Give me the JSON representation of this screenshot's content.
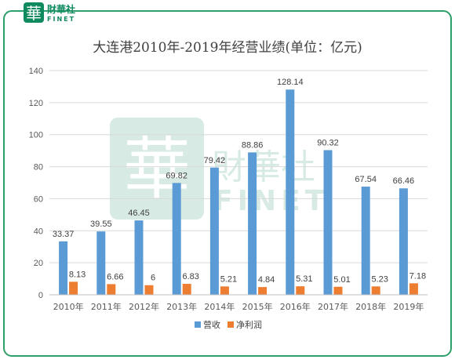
{
  "logo": {
    "mark": "華",
    "brand": "財華社",
    "brand_latin": "FINET"
  },
  "watermark": {
    "mark": "華",
    "brand": "財華社",
    "brand_latin": "FINET"
  },
  "colors": {
    "revenue": "#5b9bd5",
    "profit": "#ed7d31",
    "frame": "#2e9e6a",
    "logo": "#0f8a5f"
  },
  "chart_data": {
    "type": "bar",
    "title": "大连港2010年-2019年经营业绩(单位：亿元)",
    "categories": [
      "2010年",
      "2011年",
      "2012年",
      "2013年",
      "2014年",
      "2015年",
      "2016年",
      "2017年",
      "2018年",
      "2019年"
    ],
    "series": [
      {
        "name": "营收",
        "values": [
          33.37,
          39.55,
          46.45,
          69.82,
          79.42,
          88.86,
          128.14,
          90.32,
          67.54,
          66.46
        ],
        "labels": [
          "33.37",
          "39.55",
          "46.45",
          "69.82",
          "79.42",
          "88.86",
          "128.14",
          "90.32",
          "67.54",
          "66.46"
        ]
      },
      {
        "name": "净利润",
        "values": [
          8.13,
          6.66,
          6,
          6.83,
          5.21,
          4.84,
          5.31,
          5.01,
          5.23,
          7.18
        ],
        "labels": [
          "8.13",
          "6.66",
          "6",
          "6.83",
          "5.21",
          "4.84",
          "5.31",
          "5.01",
          "5.23",
          "7.18"
        ]
      }
    ],
    "ylim": [
      0,
      140
    ],
    "yticks": [
      "0",
      "20",
      "40",
      "60",
      "80",
      "100",
      "120",
      "140"
    ],
    "grid": true,
    "legend": "bottom"
  }
}
